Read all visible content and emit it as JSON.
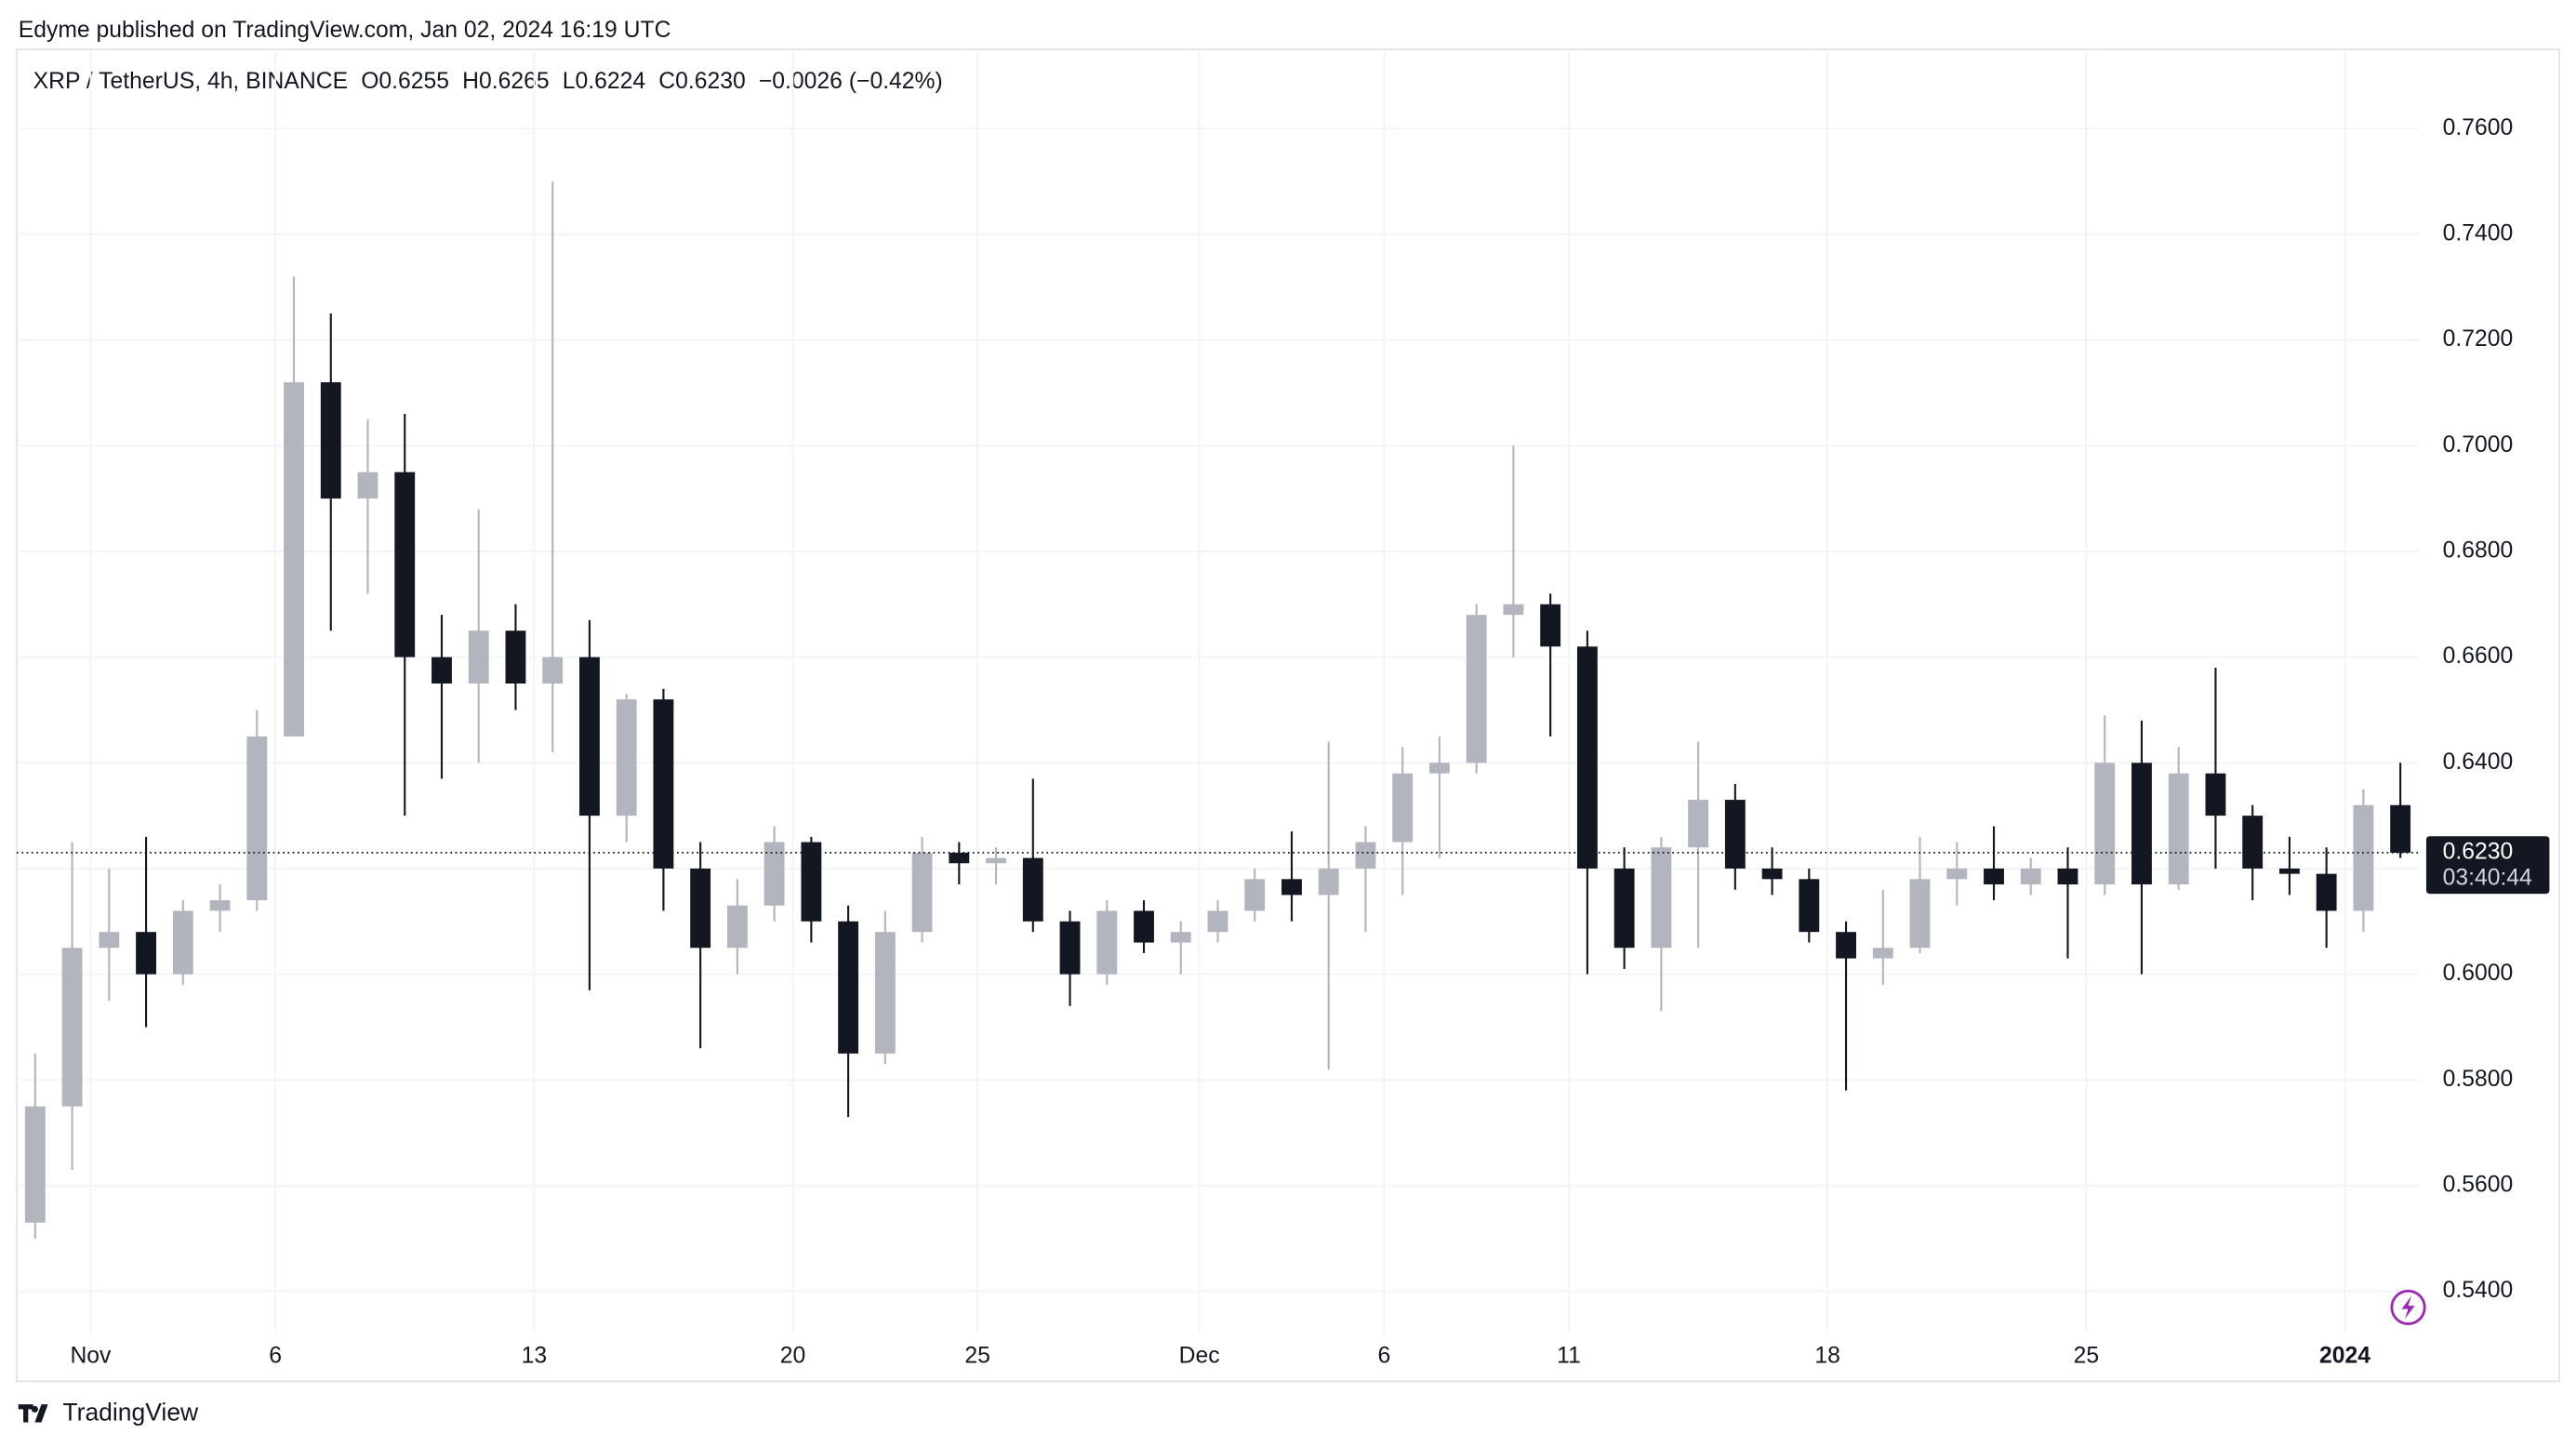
{
  "header": {
    "published": "Edyme published on TradingView.com, Jan 02, 2024 16:19 UTC"
  },
  "chart_data": {
    "type": "candlestick",
    "symbol": "XRP / TetherUS, 4h, BINANCE",
    "ohlc_legend": [
      "O0.6255",
      "H0.6265",
      "L0.6224",
      "C0.6230",
      "−0.0026 (−0.42%)"
    ],
    "up_color": "#b2b5be",
    "down_color": "#131722",
    "candles": [
      [
        0.553,
        0.585,
        0.55,
        0.575
      ],
      [
        0.575,
        0.625,
        0.563,
        0.605
      ],
      [
        0.605,
        0.62,
        0.595,
        0.608
      ],
      [
        0.608,
        0.626,
        0.59,
        0.6
      ],
      [
        0.6,
        0.614,
        0.598,
        0.612
      ],
      [
        0.612,
        0.617,
        0.608,
        0.614
      ],
      [
        0.614,
        0.65,
        0.612,
        0.645
      ],
      [
        0.645,
        0.732,
        0.645,
        0.712
      ],
      [
        0.712,
        0.725,
        0.665,
        0.69
      ],
      [
        0.69,
        0.705,
        0.672,
        0.695
      ],
      [
        0.695,
        0.706,
        0.63,
        0.66
      ],
      [
        0.66,
        0.668,
        0.637,
        0.655
      ],
      [
        0.655,
        0.688,
        0.64,
        0.665
      ],
      [
        0.665,
        0.67,
        0.65,
        0.655
      ],
      [
        0.655,
        0.75,
        0.642,
        0.66
      ],
      [
        0.66,
        0.667,
        0.597,
        0.63
      ],
      [
        0.63,
        0.653,
        0.625,
        0.652
      ],
      [
        0.652,
        0.654,
        0.612,
        0.62
      ],
      [
        0.62,
        0.625,
        0.586,
        0.605
      ],
      [
        0.605,
        0.618,
        0.6,
        0.613
      ],
      [
        0.613,
        0.628,
        0.61,
        0.625
      ],
      [
        0.625,
        0.626,
        0.606,
        0.61
      ],
      [
        0.61,
        0.613,
        0.573,
        0.585
      ],
      [
        0.585,
        0.612,
        0.583,
        0.608
      ],
      [
        0.608,
        0.626,
        0.606,
        0.623
      ],
      [
        0.623,
        0.625,
        0.617,
        0.621
      ],
      [
        0.621,
        0.624,
        0.617,
        0.622
      ],
      [
        0.622,
        0.637,
        0.608,
        0.61
      ],
      [
        0.61,
        0.612,
        0.594,
        0.6
      ],
      [
        0.6,
        0.614,
        0.598,
        0.612
      ],
      [
        0.612,
        0.614,
        0.604,
        0.606
      ],
      [
        0.606,
        0.61,
        0.6,
        0.608
      ],
      [
        0.608,
        0.614,
        0.606,
        0.612
      ],
      [
        0.612,
        0.62,
        0.61,
        0.618
      ],
      [
        0.618,
        0.627,
        0.61,
        0.615
      ],
      [
        0.615,
        0.644,
        0.582,
        0.62
      ],
      [
        0.62,
        0.628,
        0.608,
        0.625
      ],
      [
        0.625,
        0.643,
        0.615,
        0.638
      ],
      [
        0.638,
        0.645,
        0.622,
        0.64
      ],
      [
        0.64,
        0.67,
        0.638,
        0.668
      ],
      [
        0.668,
        0.7,
        0.66,
        0.67
      ],
      [
        0.67,
        0.672,
        0.645,
        0.662
      ],
      [
        0.662,
        0.665,
        0.6,
        0.62
      ],
      [
        0.62,
        0.624,
        0.601,
        0.605
      ],
      [
        0.605,
        0.626,
        0.593,
        0.624
      ],
      [
        0.624,
        0.644,
        0.605,
        0.633
      ],
      [
        0.633,
        0.636,
        0.616,
        0.62
      ],
      [
        0.62,
        0.624,
        0.615,
        0.618
      ],
      [
        0.618,
        0.62,
        0.606,
        0.608
      ],
      [
        0.608,
        0.61,
        0.578,
        0.603
      ],
      [
        0.603,
        0.616,
        0.598,
        0.605
      ],
      [
        0.605,
        0.626,
        0.604,
        0.618
      ],
      [
        0.618,
        0.625,
        0.613,
        0.62
      ],
      [
        0.62,
        0.628,
        0.614,
        0.617
      ],
      [
        0.617,
        0.622,
        0.615,
        0.62
      ],
      [
        0.62,
        0.624,
        0.603,
        0.617
      ],
      [
        0.617,
        0.649,
        0.615,
        0.64
      ],
      [
        0.64,
        0.648,
        0.6,
        0.617
      ],
      [
        0.617,
        0.643,
        0.616,
        0.638
      ],
      [
        0.638,
        0.658,
        0.62,
        0.63
      ],
      [
        0.63,
        0.632,
        0.614,
        0.62
      ],
      [
        0.62,
        0.626,
        0.615,
        0.619
      ],
      [
        0.619,
        0.624,
        0.605,
        0.612
      ],
      [
        0.612,
        0.635,
        0.608,
        0.632
      ],
      [
        0.632,
        0.64,
        0.622,
        0.623
      ]
    ],
    "xlim": [
      0,
      65
    ],
    "xticks": [
      {
        "value": 2,
        "label": "Nov"
      },
      {
        "value": 7,
        "label": "6"
      },
      {
        "value": 14,
        "label": "13"
      },
      {
        "value": 21,
        "label": "20"
      },
      {
        "value": 26,
        "label": "25"
      },
      {
        "value": 32,
        "label": "Dec"
      },
      {
        "value": 37,
        "label": "6"
      },
      {
        "value": 42,
        "label": "11"
      },
      {
        "value": 49,
        "label": "18"
      },
      {
        "value": 56,
        "label": "25"
      },
      {
        "value": 63,
        "label": "2024"
      }
    ],
    "ylim": [
      0.532,
      0.775
    ],
    "yticks": [
      {
        "value": 0.54,
        "label": "0.5400"
      },
      {
        "value": 0.56,
        "label": "0.5600"
      },
      {
        "value": 0.58,
        "label": "0.5800"
      },
      {
        "value": 0.6,
        "label": "0.6000"
      },
      {
        "value": 0.62,
        "label": "0.6200"
      },
      {
        "value": 0.64,
        "label": "0.6400"
      },
      {
        "value": 0.66,
        "label": "0.6600"
      },
      {
        "value": 0.68,
        "label": "0.6800"
      },
      {
        "value": 0.7,
        "label": "0.7000"
      },
      {
        "value": 0.72,
        "label": "0.7200"
      },
      {
        "value": 0.74,
        "label": "0.7400"
      },
      {
        "value": 0.76,
        "label": "0.7600"
      }
    ],
    "grid": true,
    "last_price": {
      "value": 0.623,
      "label": "0.6230"
    },
    "countdown": "03:40:44"
  },
  "footer": {
    "brand": "TradingView"
  }
}
